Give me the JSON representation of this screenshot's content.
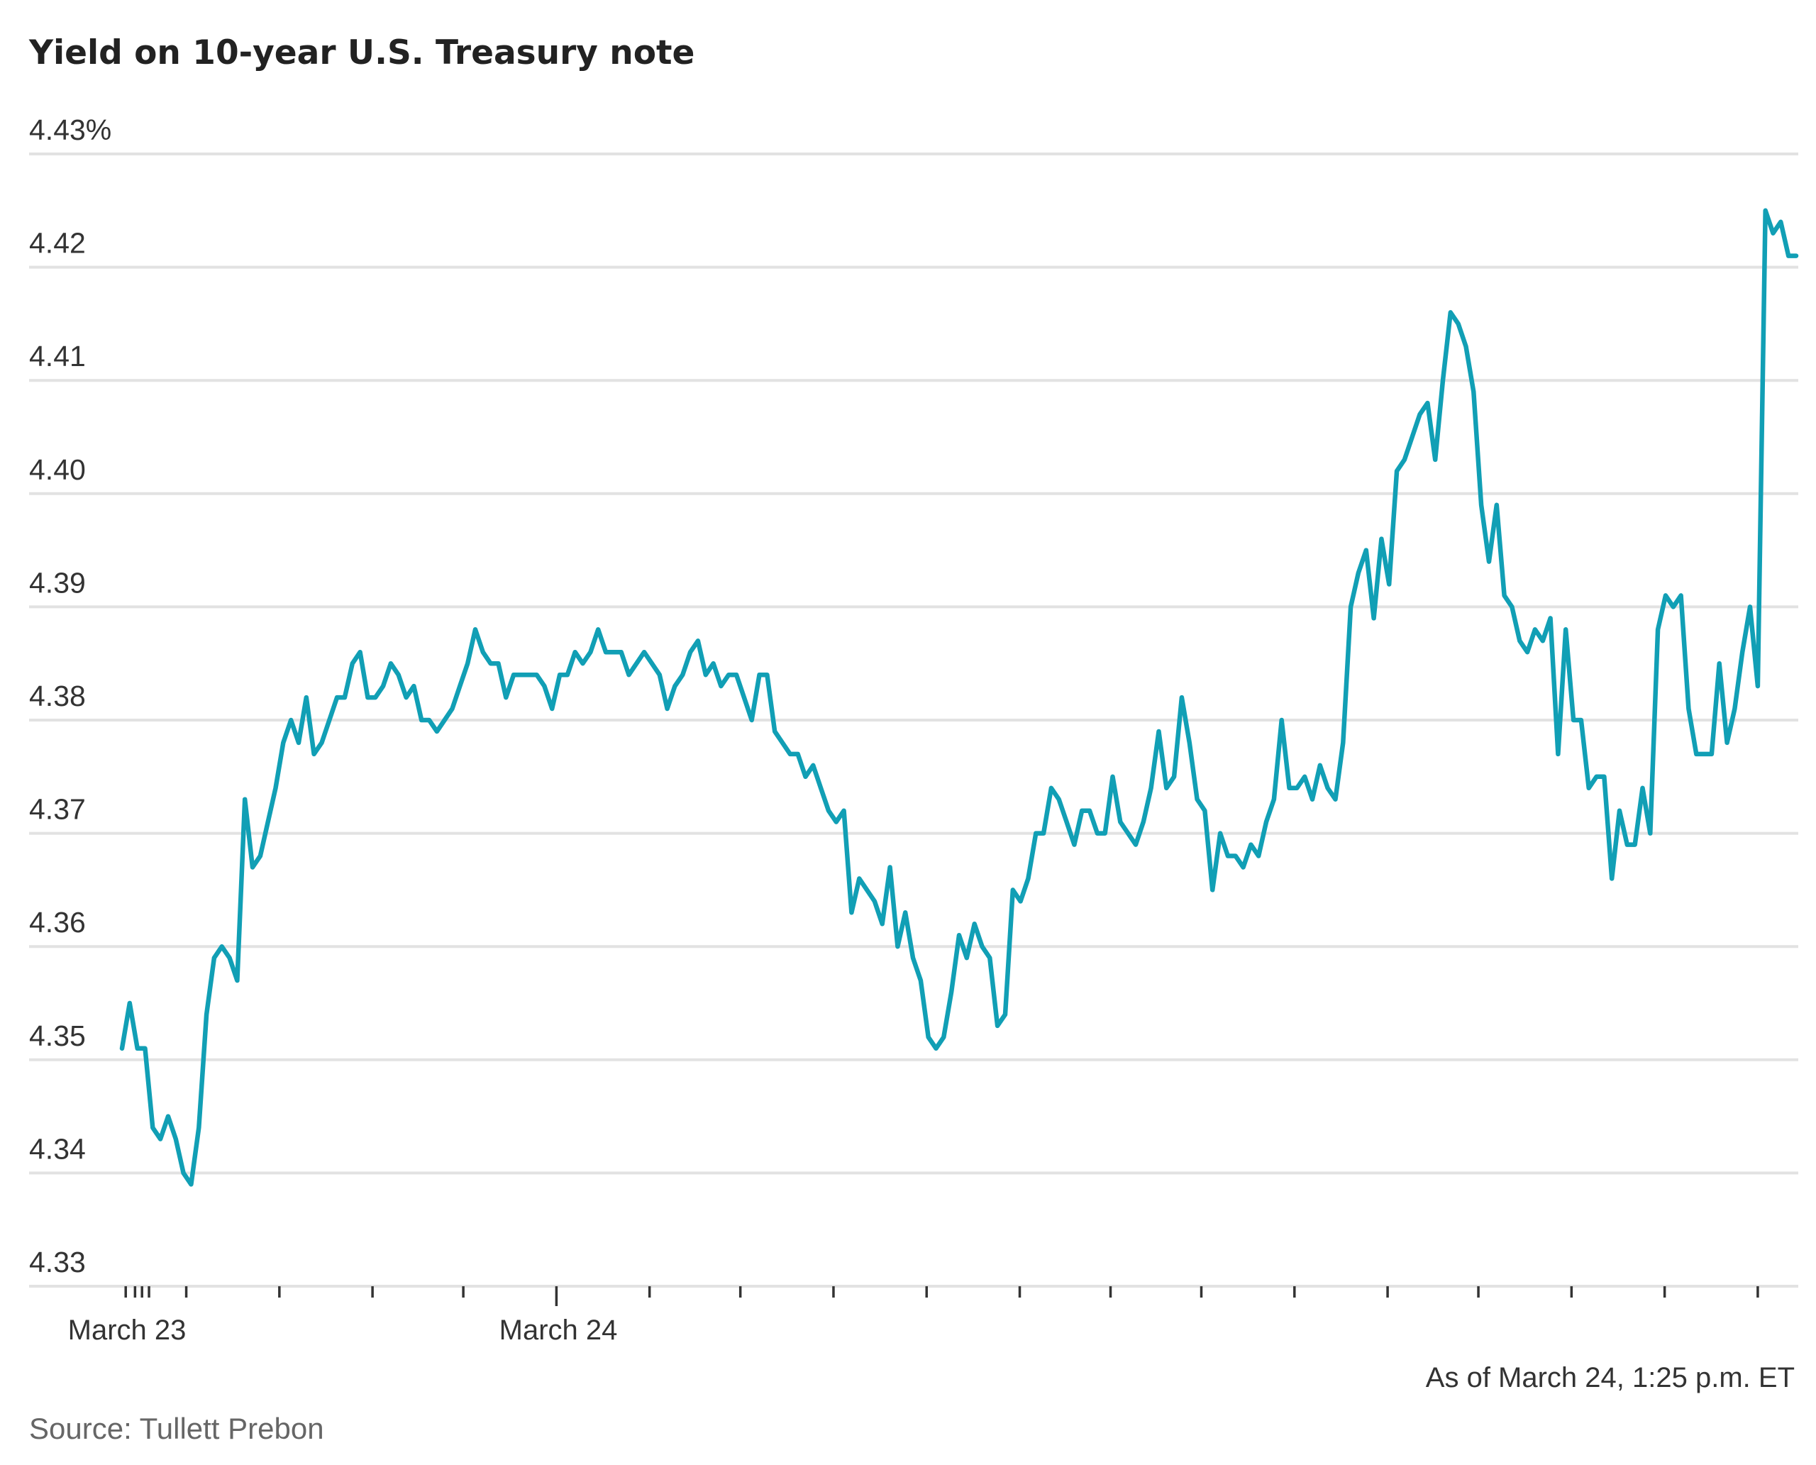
{
  "chart_data": {
    "type": "line",
    "title": "Yield on 10-year U.S. Treasury note",
    "ylim": [
      4.33,
      4.43
    ],
    "y_ticks": [
      "4.43%",
      "4.42",
      "4.41",
      "4.40",
      "4.39",
      "4.38",
      "4.37",
      "4.36",
      "4.35",
      "4.34",
      "4.33"
    ],
    "y_tick_values": [
      4.43,
      4.42,
      4.41,
      4.4,
      4.39,
      4.38,
      4.37,
      4.36,
      4.35,
      4.34,
      4.33
    ],
    "x_tick_labels": [
      "March 23",
      "March 24"
    ],
    "grid": true,
    "line_color": "#119fb5",
    "annotation": "As of March 24, 1:25 p.m. ET",
    "source": "Source: Tullett Prebon",
    "series": [
      {
        "values": [
          4.351,
          4.355,
          4.351,
          4.351,
          4.344,
          4.343,
          4.345,
          4.343,
          4.34,
          4.339,
          4.344,
          4.354,
          4.359,
          4.36,
          4.359,
          4.357,
          4.373,
          4.367,
          4.368,
          4.371,
          4.374,
          4.378,
          4.38,
          4.378,
          4.382,
          4.377,
          4.378,
          4.38,
          4.382,
          4.382,
          4.385,
          4.386,
          4.382,
          4.382,
          4.383,
          4.385,
          4.384,
          4.382,
          4.383,
          4.38,
          4.38,
          4.379,
          4.38,
          4.381,
          4.383,
          4.385,
          4.388,
          4.386,
          4.385,
          4.385,
          4.382,
          4.384,
          4.384,
          4.384,
          4.384,
          4.383,
          4.381,
          4.384,
          4.384,
          4.386,
          4.385,
          4.386,
          4.388,
          4.386,
          4.386,
          4.386,
          4.384,
          4.385,
          4.386,
          4.385,
          4.384,
          4.381,
          4.383,
          4.384,
          4.386,
          4.387,
          4.384,
          4.385,
          4.383,
          4.384,
          4.384,
          4.382,
          4.38,
          4.384,
          4.384,
          4.379,
          4.378,
          4.377,
          4.377,
          4.375,
          4.376,
          4.374,
          4.372,
          4.371,
          4.372,
          4.363,
          4.366,
          4.365,
          4.364,
          4.362,
          4.367,
          4.36,
          4.363,
          4.359,
          4.357,
          4.352,
          4.351,
          4.352,
          4.356,
          4.361,
          4.359,
          4.362,
          4.36,
          4.359,
          4.353,
          4.354,
          4.365,
          4.364,
          4.366,
          4.37,
          4.37,
          4.374,
          4.373,
          4.371,
          4.369,
          4.372,
          4.372,
          4.37,
          4.37,
          4.375,
          4.371,
          4.37,
          4.369,
          4.371,
          4.374,
          4.379,
          4.374,
          4.375,
          4.382,
          4.378,
          4.373,
          4.372,
          4.365,
          4.37,
          4.368,
          4.368,
          4.367,
          4.369,
          4.368,
          4.371,
          4.373,
          4.38,
          4.374,
          4.374,
          4.375,
          4.373,
          4.376,
          4.374,
          4.373,
          4.378,
          4.39,
          4.393,
          4.395,
          4.389,
          4.396,
          4.392,
          4.402,
          4.403,
          4.405,
          4.407,
          4.408,
          4.403,
          4.41,
          4.416,
          4.415,
          4.413,
          4.409,
          4.399,
          4.394,
          4.399,
          4.391,
          4.39,
          4.387,
          4.386,
          4.388,
          4.387,
          4.389,
          4.377,
          4.388,
          4.38,
          4.38,
          4.374,
          4.375,
          4.375,
          4.366,
          4.372,
          4.369,
          4.369,
          4.374,
          4.37,
          4.388,
          4.391,
          4.39,
          4.391,
          4.381,
          4.377,
          4.377,
          4.377,
          4.385,
          4.378,
          4.381,
          4.386,
          4.39,
          4.383,
          4.425,
          4.423,
          4.424,
          4.421,
          4.421
        ]
      }
    ]
  }
}
